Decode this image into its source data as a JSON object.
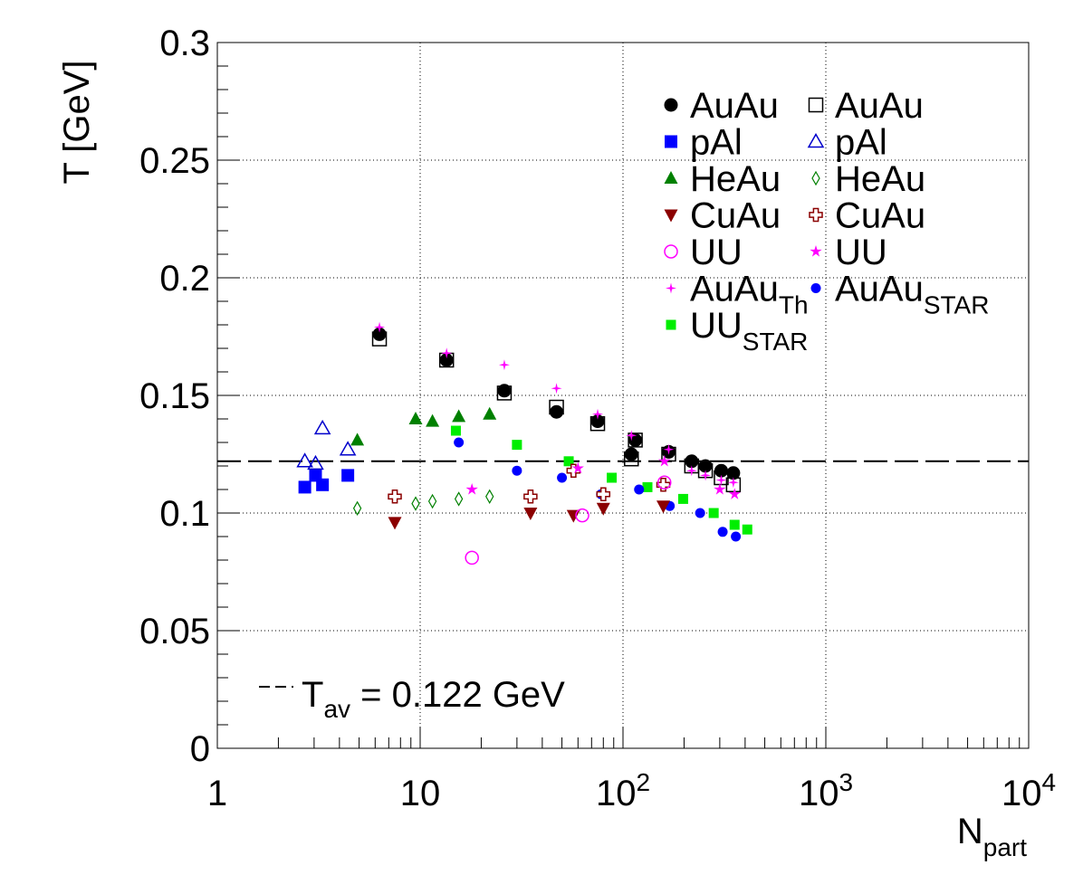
{
  "chart_data": {
    "type": "scatter",
    "xlabel": "N",
    "xlabel_sub": "part",
    "ylabel": "T [GeV]",
    "x_scale": "log",
    "xlim": [
      1,
      10000
    ],
    "ylim": [
      0,
      0.3
    ],
    "grid": true,
    "x_ticks": [
      {
        "value": 1,
        "base": "1",
        "exp": ""
      },
      {
        "value": 10,
        "base": "10",
        "exp": ""
      },
      {
        "value": 100,
        "base": "10",
        "exp": "2"
      },
      {
        "value": 1000,
        "base": "10",
        "exp": "3"
      },
      {
        "value": 10000,
        "base": "10",
        "exp": "4"
      }
    ],
    "y_ticks": [
      "0",
      "0.05",
      "0.1",
      "0.15",
      "0.2",
      "0.25",
      "0.3"
    ],
    "y_tick_values": [
      0,
      0.05,
      0.1,
      0.15,
      0.2,
      0.25,
      0.3
    ],
    "legend_placement": "top-right",
    "annotation": {
      "prefix": "T",
      "sub": "av",
      "text": " = 0.122 GeV",
      "value": 0.122
    },
    "series": [
      {
        "name": "AuAu",
        "sub": "",
        "marker": "filled-circle",
        "color": "#000000",
        "x": [
          6.3,
          13.5,
          26,
          47,
          75,
          110,
          115,
          168,
          218,
          255,
          305,
          350
        ],
        "y": [
          0.176,
          0.165,
          0.152,
          0.143,
          0.139,
          0.125,
          0.131,
          0.126,
          0.122,
          0.12,
          0.118,
          0.117
        ]
      },
      {
        "name": "pAl",
        "sub": "",
        "marker": "filled-square",
        "color": "#0000ff",
        "x": [
          2.7,
          3.05,
          3.3,
          4.4
        ],
        "y": [
          0.111,
          0.116,
          0.112,
          0.116
        ]
      },
      {
        "name": "HeAu",
        "sub": "",
        "marker": "filled-triangle-up",
        "color": "#008000",
        "x": [
          4.9,
          9.5,
          11.5,
          15.5,
          22
        ],
        "y": [
          0.131,
          0.14,
          0.139,
          0.141,
          0.142
        ]
      },
      {
        "name": "CuAu",
        "sub": "",
        "marker": "filled-triangle-down",
        "color": "#8b0000",
        "x": [
          7.5,
          35,
          57,
          80,
          158
        ],
        "y": [
          0.096,
          0.1,
          0.099,
          0.102,
          0.103
        ]
      },
      {
        "name": "UU",
        "sub": "",
        "marker": "open-circle",
        "color": "#ff00ff",
        "x": [
          18,
          63,
          160
        ],
        "y": [
          0.081,
          0.099,
          0.113
        ]
      },
      {
        "name": "AuAu",
        "sub": "Th",
        "marker": "star4",
        "color": "#ff00ff",
        "x": [
          6.3,
          13.5,
          26,
          47,
          75,
          110,
          168,
          218,
          255,
          305,
          350
        ],
        "y": [
          0.179,
          0.168,
          0.163,
          0.153,
          0.142,
          0.133,
          0.127,
          0.118,
          0.116,
          0.114,
          0.113
        ]
      },
      {
        "name": "UU",
        "sub": "STAR",
        "marker": "filled-square-small",
        "color": "#00ee00",
        "x": [
          15,
          30,
          54,
          88,
          132,
          198,
          280,
          355,
          410
        ],
        "y": [
          0.135,
          0.129,
          0.122,
          0.115,
          0.111,
          0.106,
          0.1,
          0.095,
          0.093
        ]
      },
      {
        "name": "AuAu",
        "sub": "",
        "marker": "open-square",
        "color": "#000000",
        "x": [
          6.3,
          13.5,
          26,
          47,
          75,
          110,
          115,
          168,
          218,
          255,
          305,
          350
        ],
        "y": [
          0.174,
          0.165,
          0.151,
          0.145,
          0.138,
          0.123,
          0.131,
          0.125,
          0.12,
          0.118,
          0.115,
          0.112
        ]
      },
      {
        "name": "pAl",
        "sub": "",
        "marker": "open-triangle-up",
        "color": "#0000cc",
        "x": [
          2.7,
          3.05,
          3.3,
          4.4
        ],
        "y": [
          0.122,
          0.121,
          0.136,
          0.127
        ]
      },
      {
        "name": "HeAu",
        "sub": "",
        "marker": "open-diamond",
        "color": "#008000",
        "x": [
          4.9,
          9.5,
          11.5,
          15.5,
          22
        ],
        "y": [
          0.102,
          0.104,
          0.105,
          0.106,
          0.107
        ]
      },
      {
        "name": "CuAu",
        "sub": "",
        "marker": "open-cross",
        "color": "#8b0000",
        "x": [
          7.5,
          35,
          57,
          80,
          158
        ],
        "y": [
          0.107,
          0.107,
          0.118,
          0.108,
          0.112
        ]
      },
      {
        "name": "UU",
        "sub": "",
        "marker": "star5",
        "color": "#ff00ff",
        "x": [
          18,
          60,
          160,
          300,
          355
        ],
        "y": [
          0.11,
          0.119,
          0.122,
          0.11,
          0.108
        ]
      },
      {
        "name": "AuAu",
        "sub": "STAR",
        "marker": "filled-circle-small",
        "color": "#0000ff",
        "x": [
          15.5,
          30,
          50,
          78,
          120,
          170,
          240,
          310,
          360
        ],
        "y": [
          0.13,
          0.118,
          0.115,
          0.108,
          0.11,
          0.103,
          0.1,
          0.092,
          0.09
        ]
      }
    ],
    "legend_order": [
      0,
      7,
      1,
      8,
      2,
      9,
      3,
      10,
      4,
      11,
      5,
      12,
      6
    ]
  }
}
